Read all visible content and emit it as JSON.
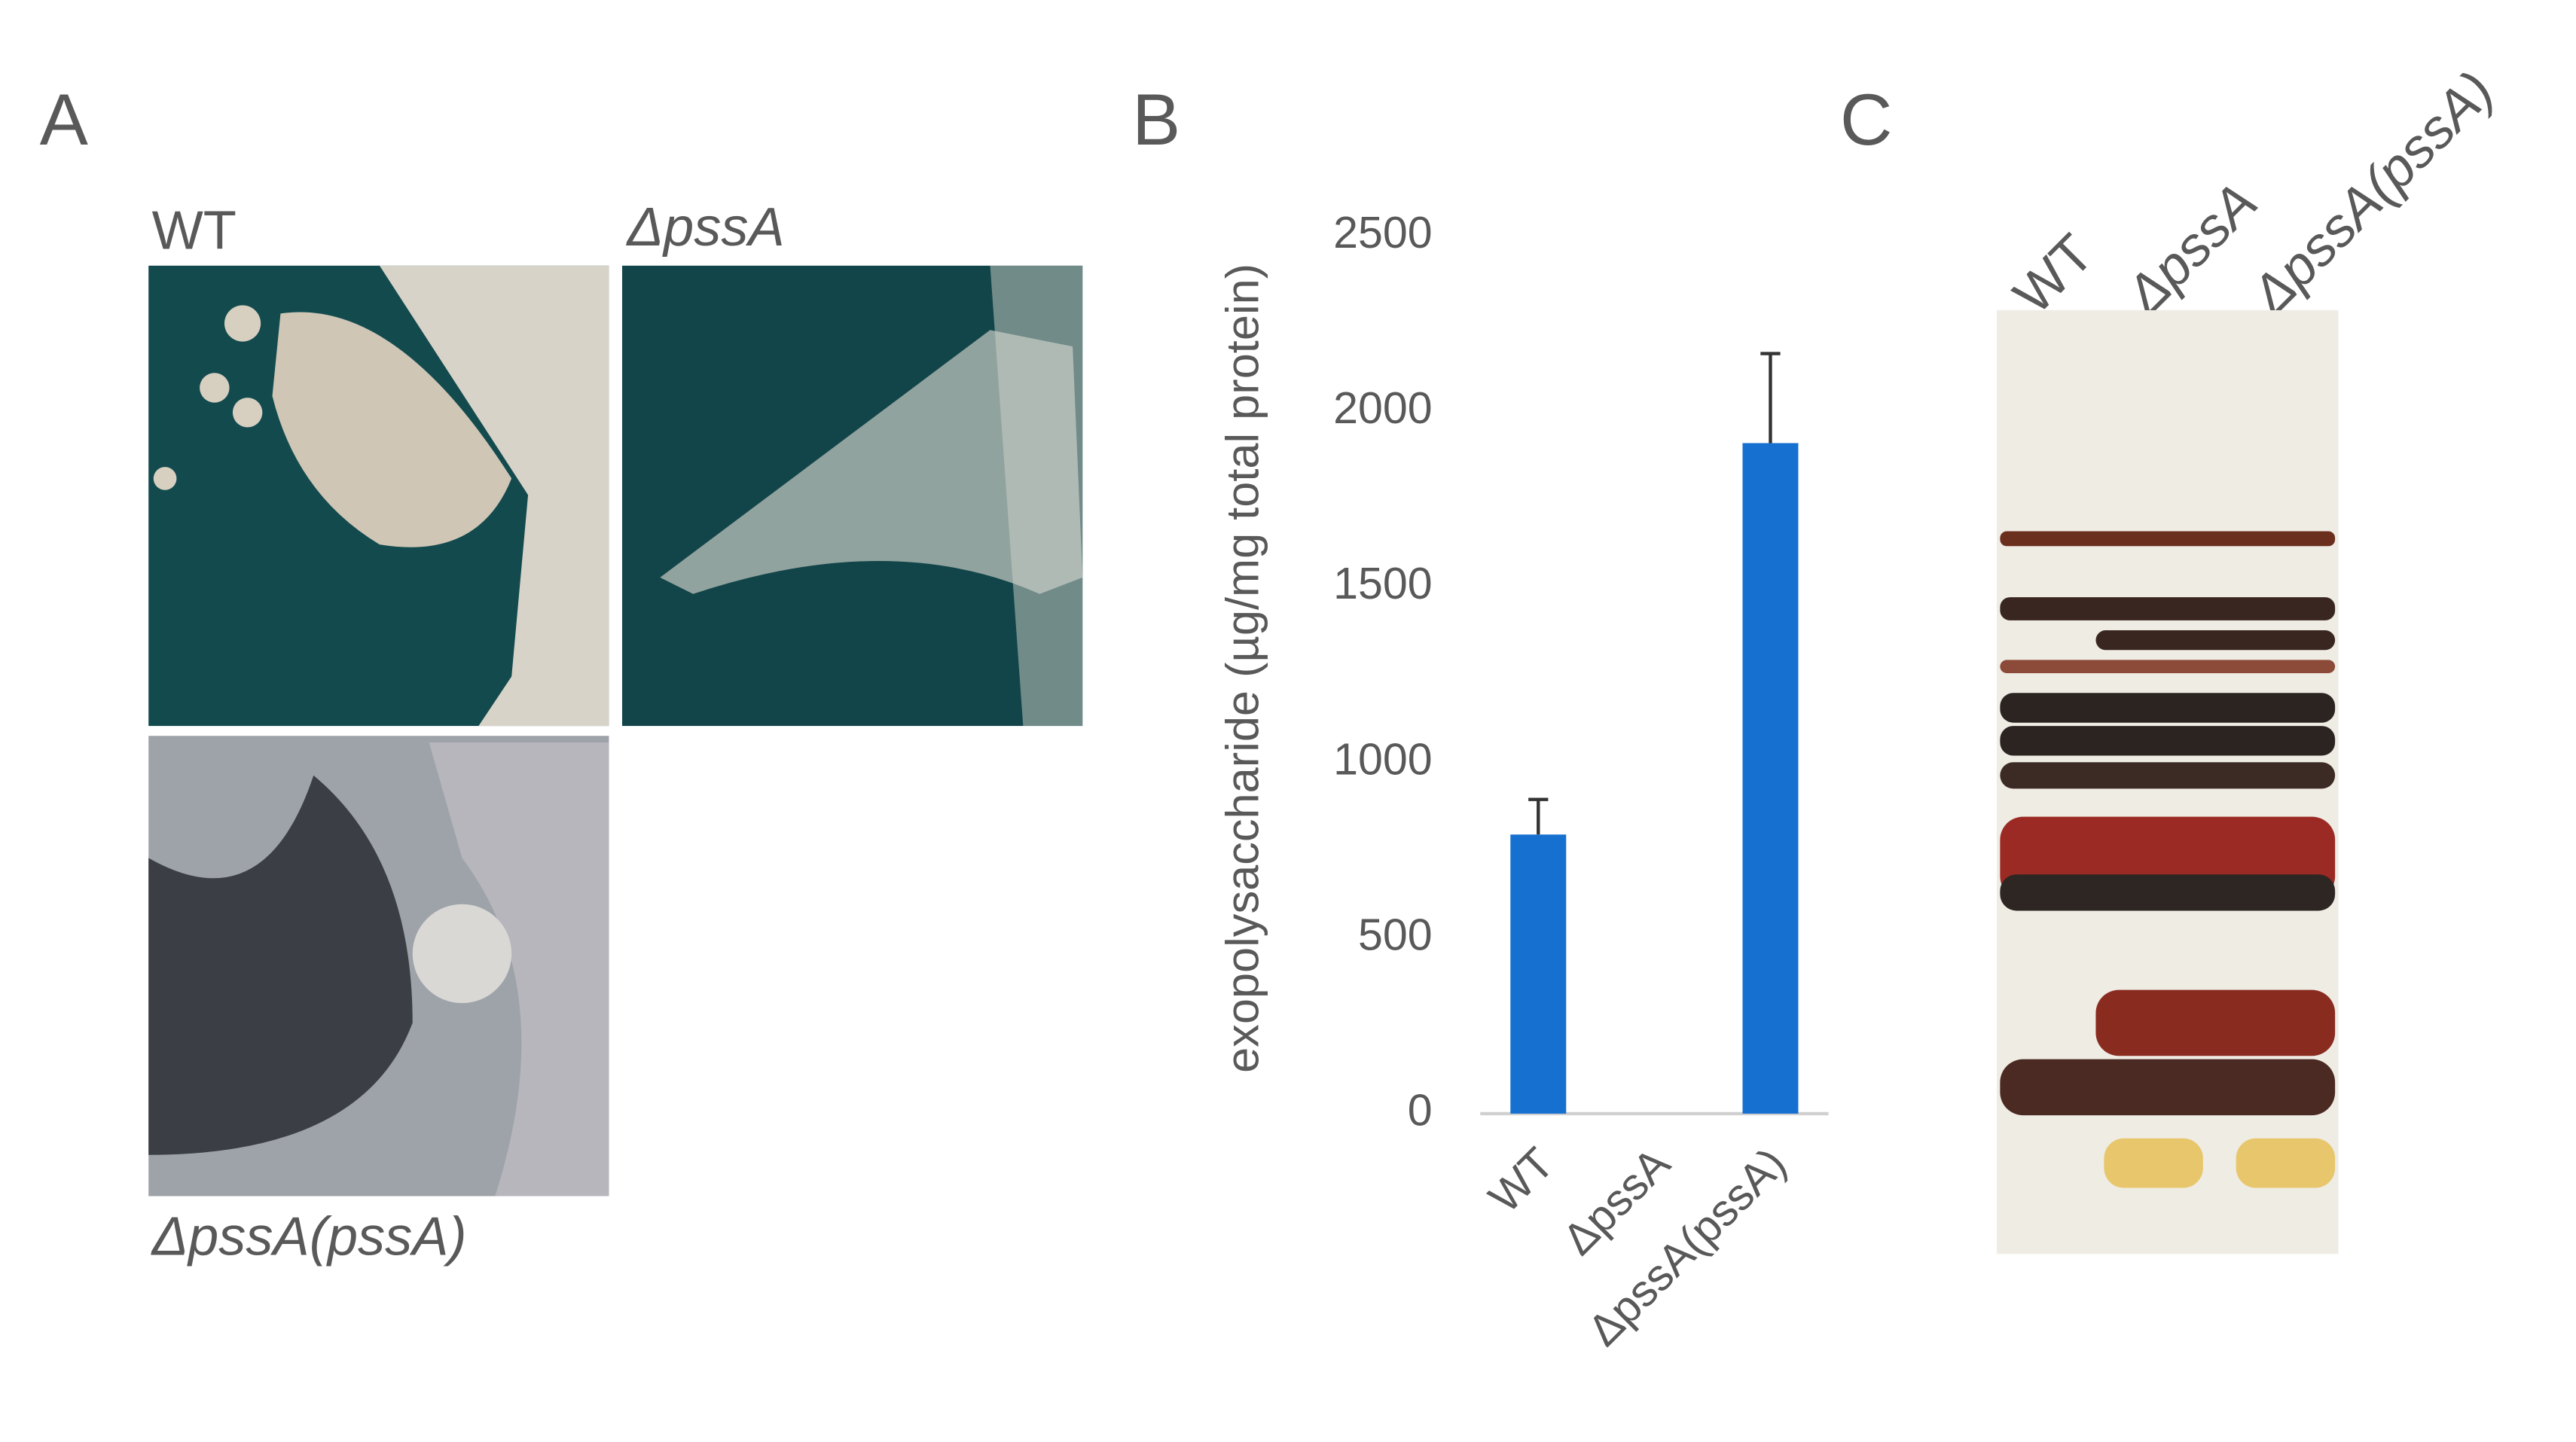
{
  "panel_a": {
    "label": "A",
    "plate_labels": [
      "WT",
      "ΔpssA",
      "ΔpssA(pssA)"
    ]
  },
  "panel_b": {
    "label": "B"
  },
  "panel_c": {
    "label": "C",
    "lane_labels": [
      "WT",
      "ΔpssA",
      "ΔpssA(pssA)"
    ]
  },
  "chart_data": {
    "type": "bar",
    "y_label": "exopolysaccharide (µg/mg total protein)",
    "categories": [
      "WT",
      "ΔpssA",
      "ΔpssA(pssA)"
    ],
    "values": [
      795,
      0,
      1910
    ],
    "errors": [
      100,
      0,
      255
    ],
    "color": "#1570d0",
    "ylim": [
      0,
      2500
    ],
    "yticks": [
      0,
      500,
      1000,
      1500,
      2000,
      2500
    ],
    "grid": false
  }
}
